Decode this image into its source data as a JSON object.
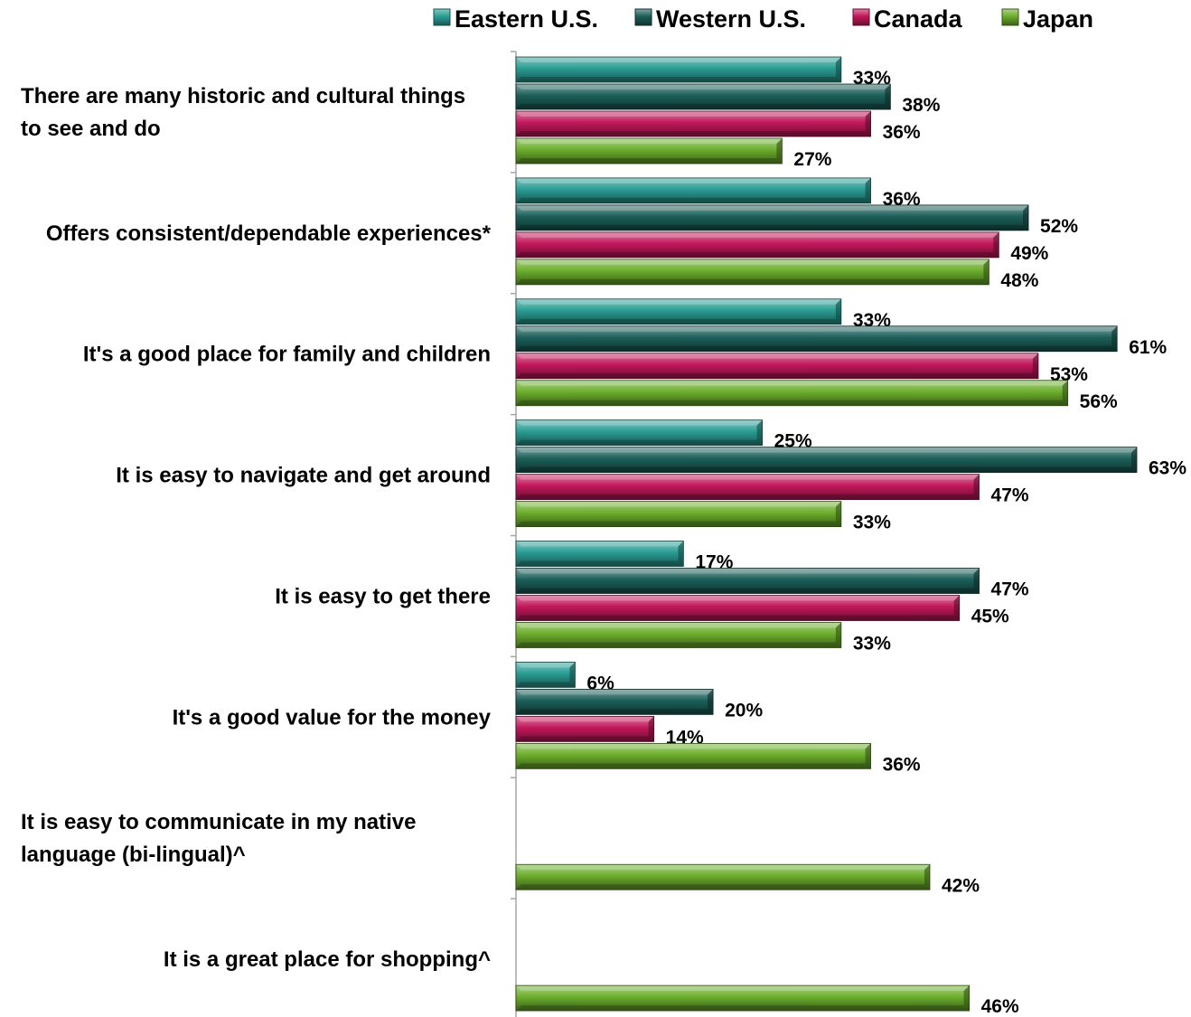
{
  "chart_data": {
    "type": "bar",
    "orientation": "horizontal",
    "xlim": [
      0,
      65
    ],
    "grid": false,
    "legend_position": "top",
    "categories": [
      "There are many historic and cultural things to see and do",
      "Offers consistent/dependable experiences*",
      "It's a good place for family and children",
      "It is easy to navigate and get around",
      "It is easy to get there",
      "It's a good value for the money",
      "It is easy to communicate in my native language (bi-lingual)^",
      "It is a great place for shopping^"
    ],
    "category_lines": [
      [
        "There are many historic and cultural things",
        "to see and do"
      ],
      [
        "Offers consistent/dependable experiences*"
      ],
      [
        "It's a good place for family and children"
      ],
      [
        "It is easy to navigate and get around"
      ],
      [
        "It is easy to get there"
      ],
      [
        "It's a good value for the money"
      ],
      [
        "It is easy to communicate in my native",
        "language (bi-lingual)^"
      ],
      [
        "It is a great place for shopping^"
      ]
    ],
    "series": [
      {
        "name": "Eastern U.S.",
        "color": "#2a9d94",
        "values": [
          33,
          36,
          33,
          25,
          17,
          6,
          null,
          null
        ]
      },
      {
        "name": "Western U.S.",
        "color": "#1c5f59",
        "values": [
          38,
          52,
          61,
          63,
          47,
          20,
          null,
          null
        ]
      },
      {
        "name": "Canada",
        "color": "#c2185b",
        "values": [
          36,
          49,
          53,
          47,
          45,
          14,
          null,
          null
        ]
      },
      {
        "name": "Japan",
        "color": "#6cae2c",
        "values": [
          27,
          48,
          56,
          33,
          33,
          36,
          42,
          46
        ]
      }
    ],
    "value_suffix": "%"
  }
}
